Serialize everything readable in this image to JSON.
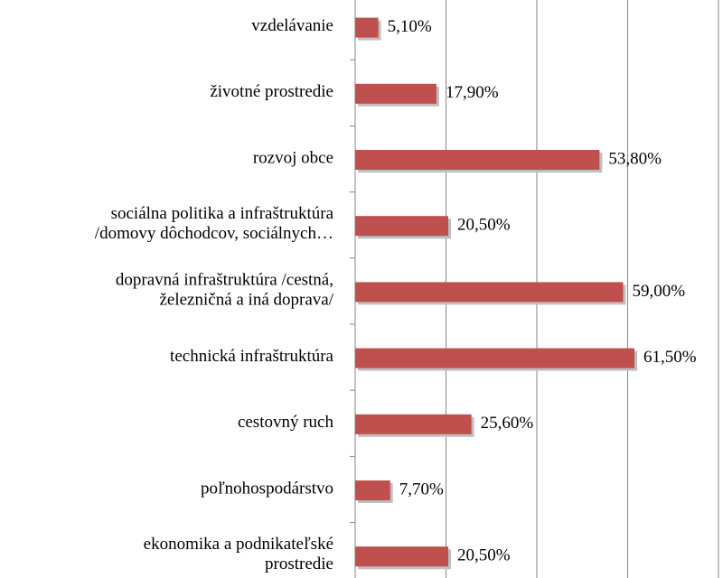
{
  "chart_data": {
    "type": "hbar",
    "categories": [
      "vzdelávanie",
      "životné prostredie",
      "rozvoj obce",
      "sociálna politika a infraštruktúra\n/domovy dôchodcov, sociálnych…",
      "dopravná infraštruktúra /cestná,\nželezničná a iná doprava/",
      "technická infraštruktúra",
      "cestovný ruch",
      "poľnohospodárstvo",
      "ekonomika a podnikateľské\nprostredie"
    ],
    "values": [
      5.1,
      17.9,
      53.8,
      20.5,
      59.0,
      61.5,
      25.6,
      7.7,
      20.5
    ],
    "value_labels": [
      "5,10%",
      "17,90%",
      "53,80%",
      "20,50%",
      "59,00%",
      "61,50%",
      "25,60%",
      "7,70%",
      "20,50%"
    ],
    "color": "#c0504d",
    "xlim": [
      0,
      80
    ],
    "xticks": [
      0,
      20,
      40,
      60,
      80
    ],
    "grid": true
  }
}
